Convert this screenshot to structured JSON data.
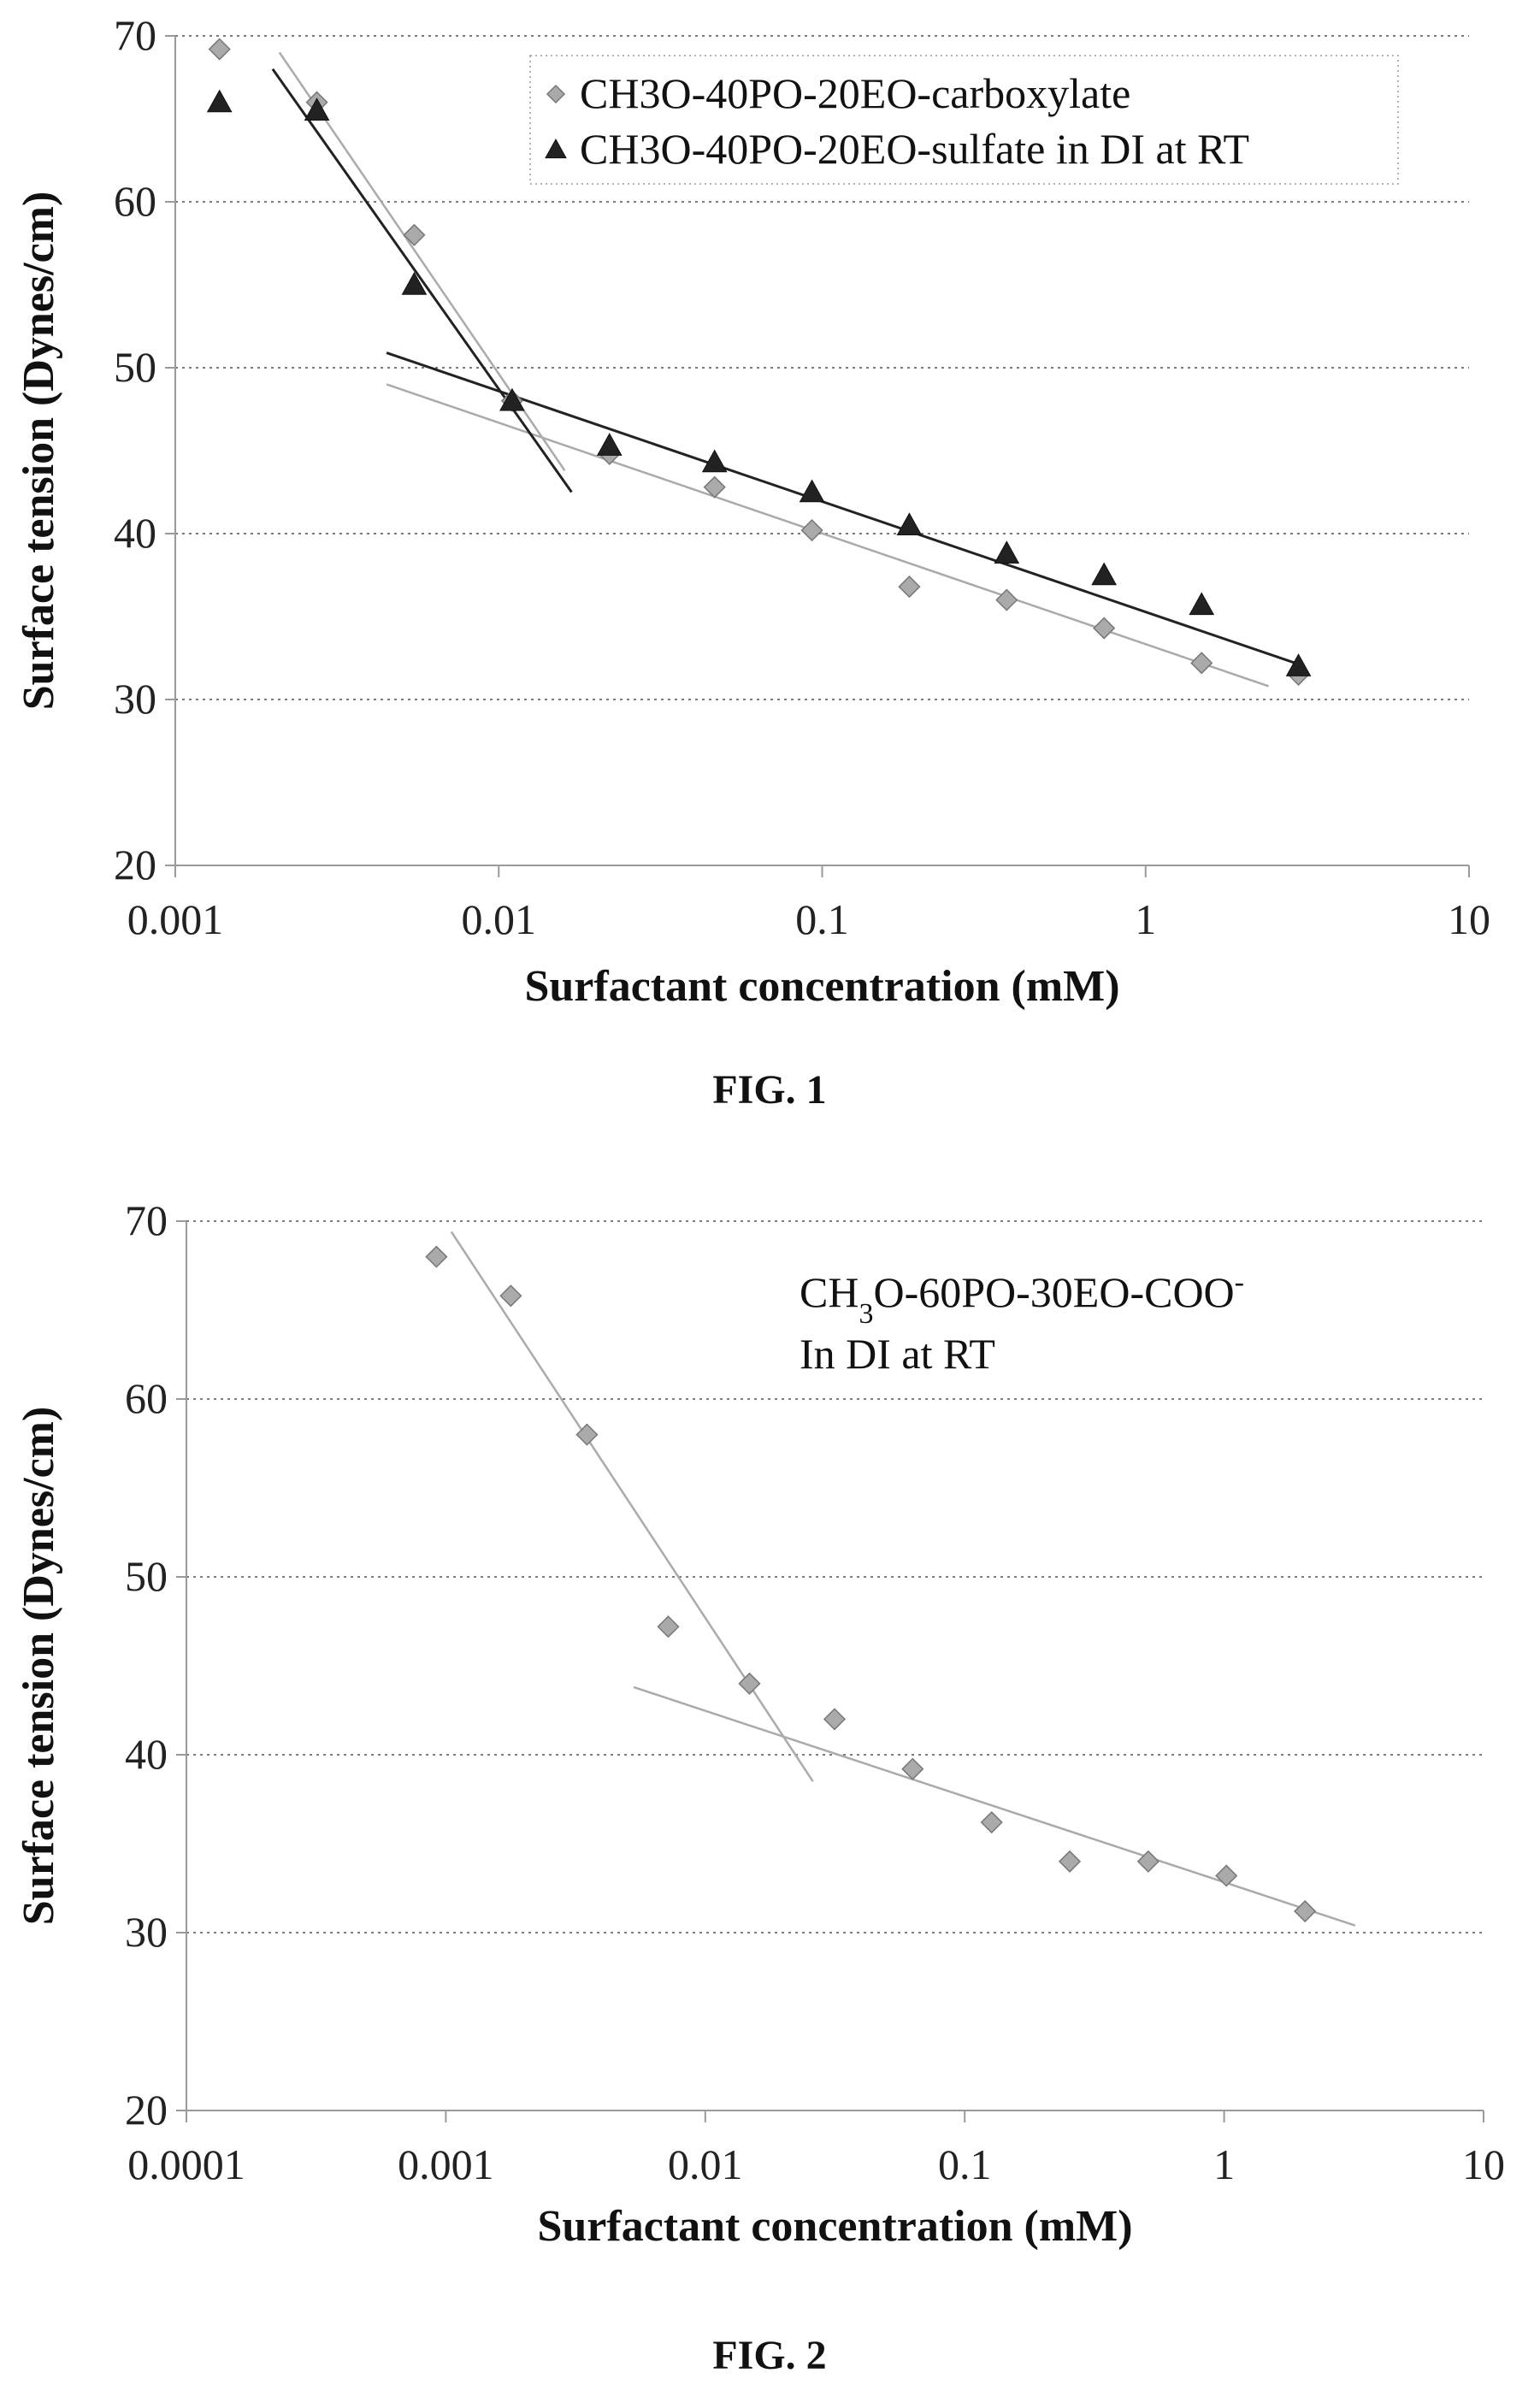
{
  "chart_data": [
    {
      "type": "scatter",
      "caption": "FIG. 1",
      "xlabel": "Surfactant concentration (mM)",
      "ylabel": "Surface tension (Dynes/cm)",
      "x_scale": "log",
      "xlim": [
        0.001,
        10
      ],
      "ylim": [
        20,
        70
      ],
      "x_ticks": [
        "0.001",
        "0.01",
        "0.1",
        "1",
        "10"
      ],
      "y_ticks": [
        "20",
        "30",
        "40",
        "50",
        "60",
        "70"
      ],
      "grid": "horizontal dotted",
      "legend_position": "top-right",
      "series": [
        {
          "name": "CH3O-40PO-20EO-carboxylate",
          "marker": "diamond",
          "color": "#aaaaaa",
          "x": [
            0.00137,
            0.00274,
            0.00548,
            0.011,
            0.022,
            0.0465,
            0.093,
            0.186,
            0.372,
            0.744,
            1.49,
            2.97
          ],
          "y": [
            69.2,
            66.0,
            58.0,
            48.0,
            44.8,
            42.8,
            40.2,
            36.8,
            36.0,
            34.3,
            32.2,
            31.5
          ]
        },
        {
          "name": "CH3O-40PO-20EO-sulfate in DI at RT",
          "marker": "triangle",
          "color": "#222222",
          "x": [
            0.00137,
            0.00274,
            0.00548,
            0.011,
            0.022,
            0.0465,
            0.093,
            0.186,
            0.372,
            0.744,
            1.49,
            2.97
          ],
          "y": [
            66.0,
            65.5,
            55.0,
            48.0,
            45.3,
            44.3,
            42.5,
            40.5,
            38.8,
            37.5,
            35.7,
            32.0
          ]
        }
      ],
      "trendlines": [
        {
          "color": "#aaaaaa",
          "x": [
            0.0021,
            0.016
          ],
          "y": [
            69.0,
            43.8
          ]
        },
        {
          "color": "#aaaaaa",
          "x": [
            0.0045,
            2.4
          ],
          "y": [
            49.0,
            30.8
          ]
        },
        {
          "color": "#222222",
          "x": [
            0.002,
            0.0168
          ],
          "y": [
            68.0,
            42.5
          ]
        },
        {
          "color": "#222222",
          "x": [
            0.0045,
            2.9
          ],
          "y": [
            50.9,
            32.2
          ]
        }
      ]
    },
    {
      "type": "scatter",
      "caption": "FIG. 2",
      "xlabel": "Surfactant concentration (mM)",
      "ylabel": "Surface tension (Dynes/cm)",
      "x_scale": "log",
      "xlim": [
        0.0001,
        10
      ],
      "ylim": [
        20,
        70
      ],
      "x_ticks": [
        "0.0001",
        "0.001",
        "0.01",
        "0.1",
        "1",
        "10"
      ],
      "y_ticks": [
        "20",
        "30",
        "40",
        "50",
        "60",
        "70"
      ],
      "grid": "horizontal",
      "annotation": {
        "line1_prefix": "CH",
        "line1_sub": "3",
        "line1_mid": "O-60PO-30EO-COO",
        "line1_sup": "-",
        "line2": "In DI at RT"
      },
      "series": [
        {
          "marker": "diamond",
          "color": "#aaaaaa",
          "x": [
            0.00092,
            0.00178,
            0.0035,
            0.0072,
            0.0148,
            0.0315,
            0.063,
            0.127,
            0.254,
            0.51,
            1.02,
            2.05
          ],
          "y": [
            68.0,
            65.8,
            58.0,
            47.2,
            44.0,
            42.0,
            39.2,
            36.2,
            34.0,
            34.0,
            33.2,
            31.2
          ]
        }
      ],
      "trendlines": [
        {
          "color": "#aaaaaa",
          "x": [
            0.00105,
            0.026
          ],
          "y": [
            69.4,
            38.5
          ]
        },
        {
          "color": "#aaaaaa",
          "x": [
            0.0053,
            3.2
          ],
          "y": [
            43.8,
            30.4
          ]
        }
      ]
    }
  ]
}
